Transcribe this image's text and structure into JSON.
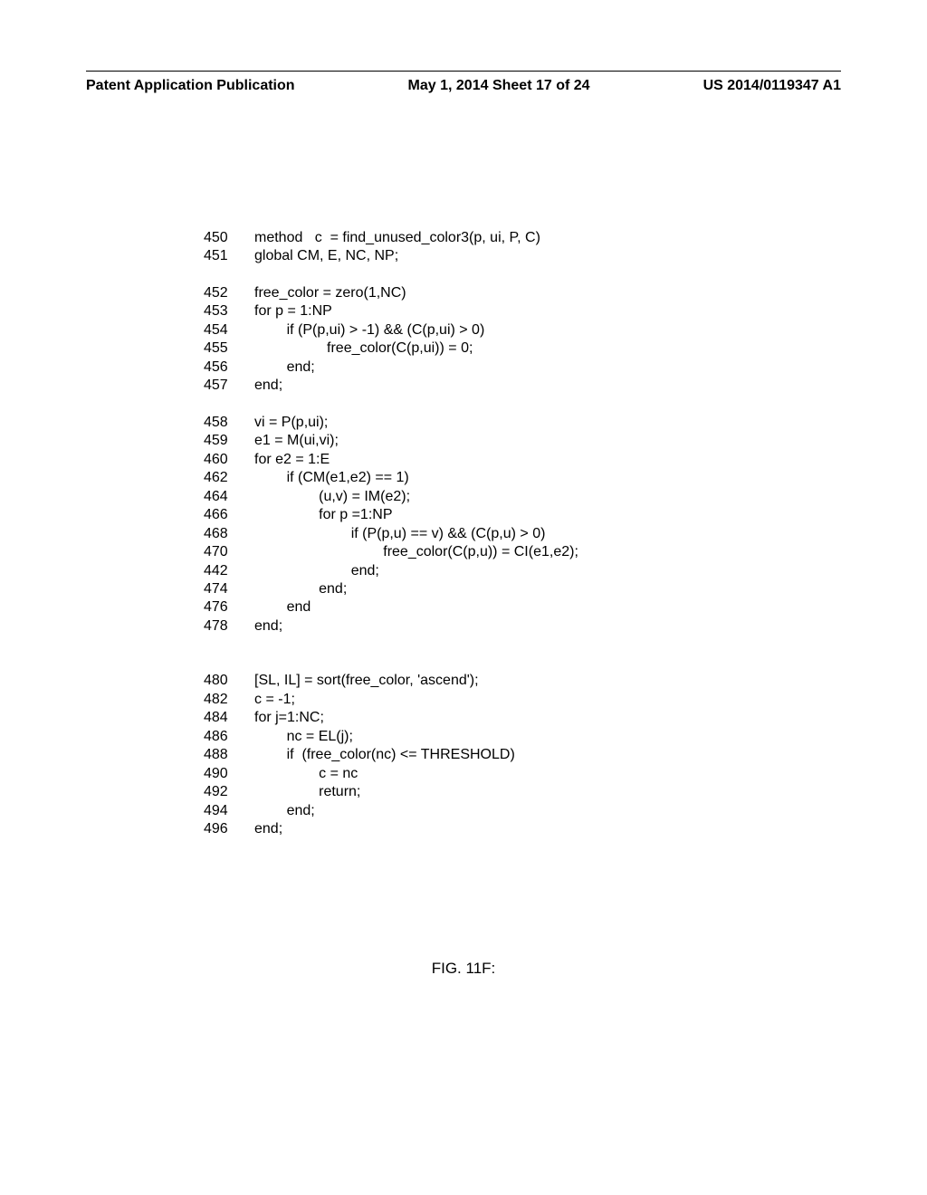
{
  "header": {
    "left": "Patent Application Publication",
    "center": "May 1, 2014  Sheet 17 of 24",
    "right": "US 2014/0119347 A1"
  },
  "code": {
    "lines": [
      {
        "ln": "450",
        "text": "method   c  = find_unused_color3(p, ui, P, C)"
      },
      {
        "ln": "451",
        "text": "global CM, E, NC, NP;"
      },
      {
        "ln": "",
        "text": ""
      },
      {
        "ln": "452",
        "text": "free_color = zero(1,NC)"
      },
      {
        "ln": "453",
        "text": "for p = 1:NP"
      },
      {
        "ln": "454",
        "text": "        if (P(p,ui) > -1) && (C(p,ui) > 0)"
      },
      {
        "ln": "455",
        "text": "                  free_color(C(p,ui)) = 0;"
      },
      {
        "ln": "456",
        "text": "        end;"
      },
      {
        "ln": "457",
        "text": "end;"
      },
      {
        "ln": "",
        "text": ""
      },
      {
        "ln": "458",
        "text": "vi = P(p,ui);"
      },
      {
        "ln": "459",
        "text": "e1 = M(ui,vi);"
      },
      {
        "ln": "460",
        "text": "for e2 = 1:E"
      },
      {
        "ln": "462",
        "text": "        if (CM(e1,e2) == 1)"
      },
      {
        "ln": "464",
        "text": "                (u,v) = IM(e2);"
      },
      {
        "ln": "466",
        "text": "                for p =1:NP"
      },
      {
        "ln": "468",
        "text": "                        if (P(p,u) == v) && (C(p,u) > 0)"
      },
      {
        "ln": "470",
        "text": "                                free_color(C(p,u)) = CI(e1,e2);"
      },
      {
        "ln": "442",
        "text": "                        end;"
      },
      {
        "ln": "474",
        "text": "                end;"
      },
      {
        "ln": "476",
        "text": "        end"
      },
      {
        "ln": "478",
        "text": "end;"
      },
      {
        "ln": "",
        "text": ""
      },
      {
        "ln": "",
        "text": ""
      },
      {
        "ln": "480",
        "text": "[SL, IL] = sort(free_color, 'ascend');"
      },
      {
        "ln": "482",
        "text": "c = -1;"
      },
      {
        "ln": "484",
        "text": "for j=1:NC;"
      },
      {
        "ln": "486",
        "text": "        nc = EL(j);"
      },
      {
        "ln": "488",
        "text": "        if  (free_color(nc) <= THRESHOLD)"
      },
      {
        "ln": "490",
        "text": "                c = nc"
      },
      {
        "ln": "492",
        "text": "                return;"
      },
      {
        "ln": "494",
        "text": "        end;"
      },
      {
        "ln": "496",
        "text": "end;"
      }
    ]
  },
  "figure_caption": "FIG.  11F:"
}
